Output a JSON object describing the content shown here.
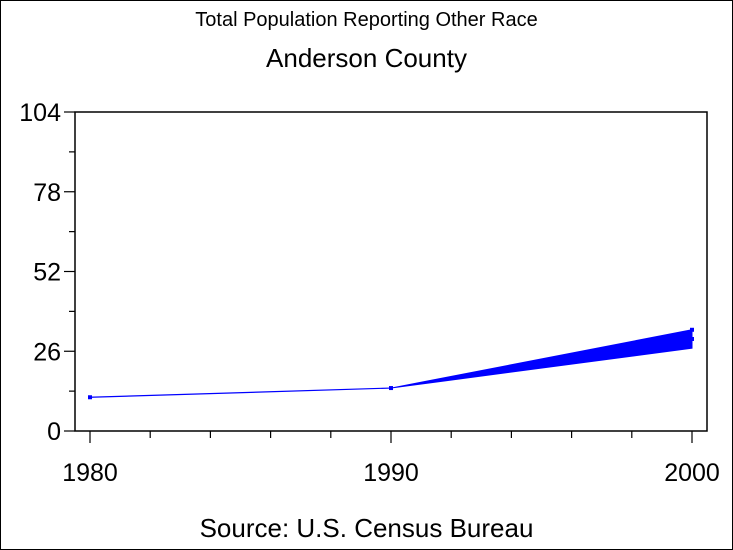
{
  "chart_data": {
    "type": "line",
    "subtitle": "Total Population Reporting Other Race",
    "title": "Anderson County",
    "source": "Source: U.S. Census Bureau",
    "xlabel": "",
    "ylabel": "",
    "x": [
      1980,
      1990,
      2000
    ],
    "x_ticks": [
      "1980",
      "1990",
      "2000"
    ],
    "xlim": [
      1980,
      2000
    ],
    "y_ticks": [
      "0",
      "26",
      "52",
      "78",
      "104"
    ],
    "ylim": [
      0,
      104
    ],
    "grid": false,
    "series": [
      {
        "values": [
          11,
          14,
          30
        ],
        "band_2000": [
          27,
          33
        ]
      }
    ],
    "colors": {
      "line": "#0000ff",
      "axis": "#000000"
    }
  }
}
